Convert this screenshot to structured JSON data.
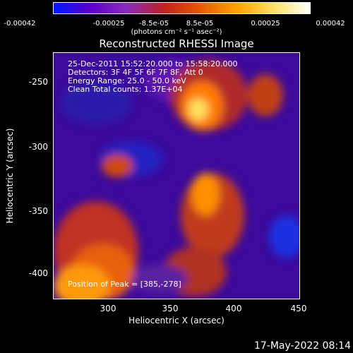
{
  "colorbar": {
    "ticks": [
      "-0.00042",
      "-0.00025",
      "-8.5e-05",
      "8.5e-05",
      "0.00025",
      "0.00042"
    ],
    "units": "(photons cm⁻² s⁻¹ asec⁻²)",
    "colors": [
      "#0018ff",
      "#5a00c8",
      "#8a2bbd",
      "#c02020",
      "#e65a00",
      "#ffa000",
      "#ffe060",
      "#ffffff"
    ]
  },
  "title": "Reconstructed RHESSI Image",
  "annotations": {
    "time": "25-Dec-2011 15:52:20.000 to 15:58:20.000",
    "detectors": "Detectors: 3F 4F 5F 6F 7F 8F, Att 0",
    "energy": "Energy Range: 25.0 - 50.0 keV",
    "clean": "Clean     Total counts: 1.37E+04",
    "peak": "Position of Peak = [385,-278]"
  },
  "axes": {
    "xlabel": "Heliocentric X (arcsec)",
    "ylabel": "Heliocentric Y (arcsec)",
    "xticks": [
      "300",
      "350",
      "400",
      "450"
    ],
    "yticks": [
      "-250",
      "-300",
      "-350",
      "-400"
    ]
  },
  "footer": {
    "timestamp": "17-May-2022 08:14"
  }
}
